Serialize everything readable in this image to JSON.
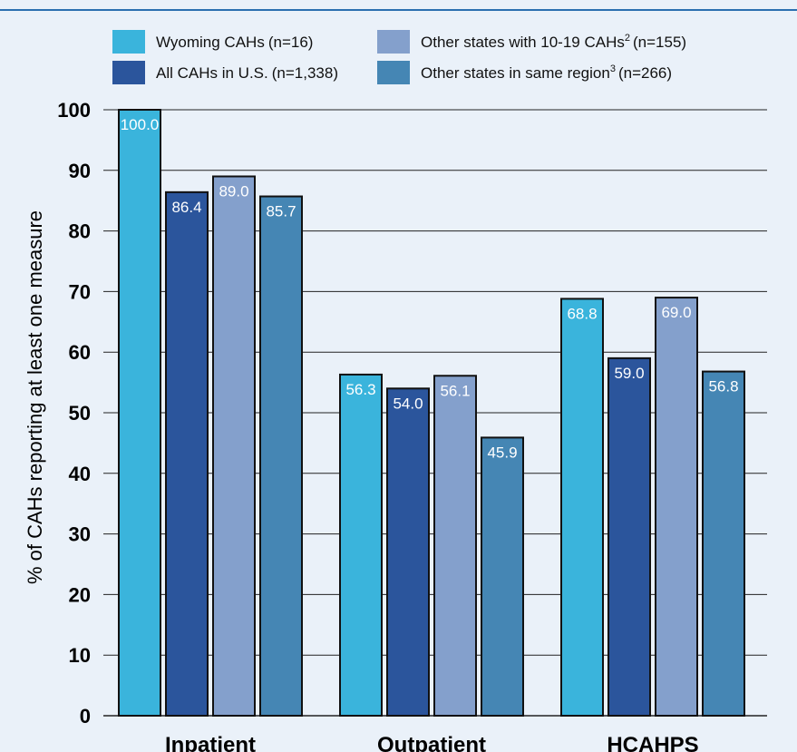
{
  "chart_data": {
    "type": "bar",
    "categories": [
      "Inpatient",
      "Outpatient",
      "HCAHPS"
    ],
    "series": [
      {
        "name": "Wyoming CAHs",
        "n_label": "(n=16)",
        "sup": "",
        "color": "#3ab4dc",
        "values": [
          100.0,
          56.3,
          68.8
        ]
      },
      {
        "name": "All CAHs in U.S.",
        "n_label": "(n=1,338)",
        "sup": "",
        "color": "#2b559c",
        "values": [
          86.4,
          54.0,
          59.0
        ]
      },
      {
        "name": "Other states with 10-19 CAHs",
        "n_label": "(n=155)",
        "sup": "2",
        "color": "#84a0cc",
        "values": [
          89.0,
          56.1,
          69.0
        ]
      },
      {
        "name": "Other states in same region",
        "n_label": "(n=266)",
        "sup": "3",
        "color": "#4586b4",
        "values": [
          85.7,
          45.9,
          56.8
        ]
      }
    ],
    "ylabel": "% of CAHs reporting at least one measure",
    "xlabel": "",
    "ylim": [
      0,
      100
    ],
    "yticks": [
      0,
      10,
      20,
      30,
      40,
      50,
      60,
      70,
      80,
      90,
      100
    ],
    "grid": true,
    "legend_position": "top"
  }
}
